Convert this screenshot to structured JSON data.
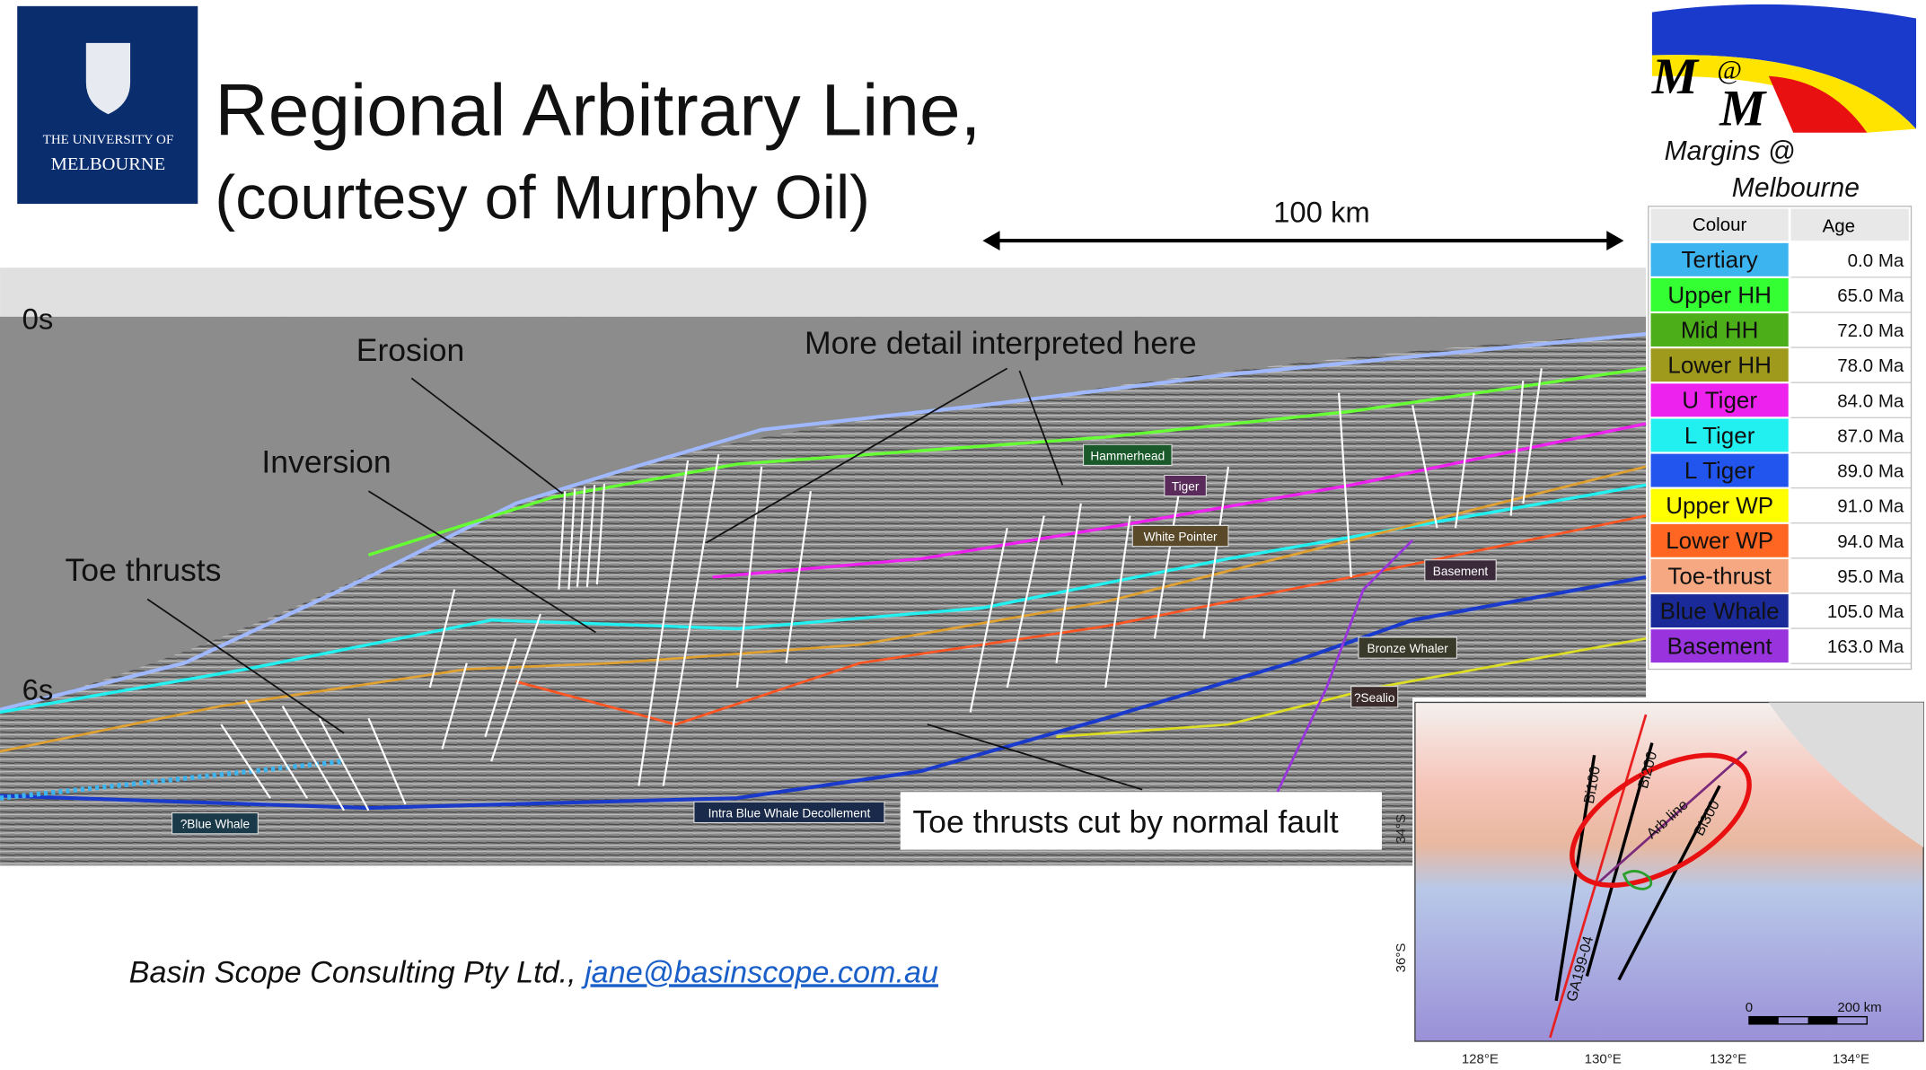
{
  "header": {
    "title": "Regional Arbitrary Line,",
    "subtitle": "(courtesy of Murphy Oil)",
    "university_logo": [
      "THE UNIVERSITY OF",
      "MELBOURNE"
    ],
    "group_logo": {
      "mark": [
        "M",
        "@",
        "M"
      ],
      "caption": [
        "Margins @",
        "Melbourne"
      ]
    }
  },
  "scale_bar": "100 km",
  "seismic": {
    "time_labels": [
      "0s",
      "6s"
    ],
    "annotations": [
      "Erosion",
      "Inversion",
      "Toe thrusts",
      "More detail interpreted here",
      "Toe thrusts cut by normal fault"
    ],
    "horizon_labels": [
      "Hammerhead",
      "Tiger",
      "White Pointer",
      "Basement",
      "Bronze Whaler",
      "?Sealio",
      "?Blue Whale",
      "Intra Blue Whale Decollement"
    ]
  },
  "legend_table": {
    "columns": [
      "Colour",
      "Age"
    ],
    "rows": [
      [
        "Tertiary",
        "0.0 Ma"
      ],
      [
        "Upper HH",
        "65.0 Ma"
      ],
      [
        "Mid HH",
        "72.0 Ma"
      ],
      [
        "Lower HH",
        "78.0 Ma"
      ],
      [
        "U Tiger",
        "84.0 Ma"
      ],
      [
        "L Tiger",
        "87.0 Ma"
      ],
      [
        "L Tiger",
        "89.0 Ma"
      ],
      [
        "Upper WP",
        "91.0 Ma"
      ],
      [
        "Lower WP",
        "94.0 Ma"
      ],
      [
        "Toe-thrust",
        "95.0 Ma"
      ],
      [
        "Blue Whale",
        "105.0 Ma"
      ],
      [
        "Basement",
        "163.0 Ma"
      ]
    ],
    "row_colors": [
      "#3cb4f0",
      "#33ff33",
      "#4caf1a",
      "#a09a1c",
      "#ee22ee",
      "#22f0f0",
      "#2255ee",
      "#ffff00",
      "#ff6622",
      "#f5a882",
      "#1a2a99",
      "#9933dd"
    ]
  },
  "map": {
    "line_labels": [
      "Bi100",
      "Bi200",
      "Bi300",
      "Arb line",
      "GA199-04"
    ],
    "lat_labels": [
      "34°S",
      "36°S"
    ],
    "lon_labels": [
      "128°E",
      "130°E",
      "132°E",
      "134°E"
    ],
    "scale_labels": [
      "0",
      "200 km"
    ]
  },
  "footer": {
    "text": "Basin Scope Consulting Pty Ltd.,",
    "email": "jane@basinscope.com.au"
  }
}
